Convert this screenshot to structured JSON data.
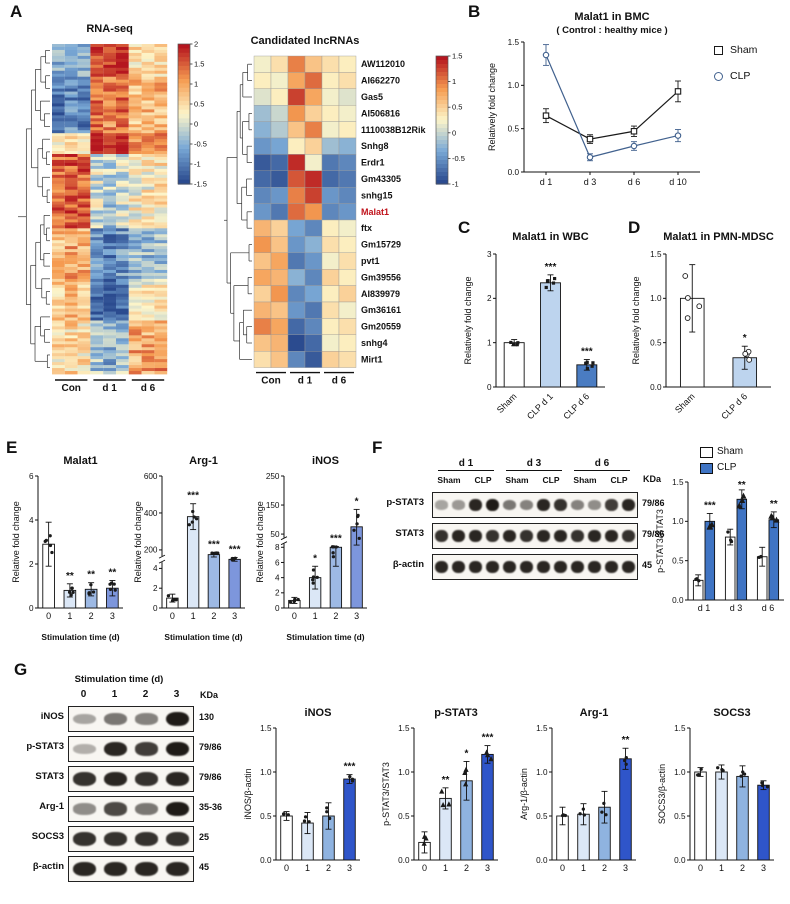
{
  "labels": {
    "A": "A",
    "B": "B",
    "C": "C",
    "D": "D",
    "E": "E",
    "F": "F",
    "G": "G"
  },
  "palette": {
    "time_bars_e": [
      "#ffffff",
      "#dbe7f6",
      "#9db9e4",
      "#7d96dc"
    ],
    "time_bars_g": [
      "#ffffff",
      "#dbe7f6",
      "#8fb3e0",
      "#2f55c9"
    ],
    "clp_fill": "#3f74c4"
  },
  "chart_data": [
    {
      "id": "A-rnaseq",
      "type": "heatmap",
      "title": "RNA-seq",
      "col_groups": [
        "Con",
        "d 1",
        "d 6"
      ],
      "range": [
        -1.5,
        2
      ],
      "colorbar_ticks": [
        2,
        1.5,
        1,
        0.5,
        0,
        -0.5,
        -1,
        -1.5
      ],
      "n_rows": 110,
      "n_cols": 9,
      "bands": [
        {
          "frac": 0.1,
          "means": [
            -0.5,
            1.7,
            0.6
          ],
          "noise": 0.45
        },
        {
          "frac": 0.17,
          "means": [
            -1.0,
            1.4,
            0.9
          ],
          "noise": 0.5
        },
        {
          "frac": 0.06,
          "means": [
            0.4,
            1.9,
            1.3
          ],
          "noise": 0.35
        },
        {
          "frac": 0.23,
          "means": [
            1.5,
            -0.1,
            0.4
          ],
          "noise": 0.55
        },
        {
          "frac": 0.15,
          "means": [
            0.9,
            -0.9,
            -0.3
          ],
          "noise": 0.5
        },
        {
          "frac": 0.13,
          "means": [
            0.7,
            -1.2,
            0.4
          ],
          "noise": 0.45
        },
        {
          "frac": 0.16,
          "means": [
            0.5,
            -0.4,
            1.1
          ],
          "noise": 0.55
        }
      ]
    },
    {
      "id": "A-lncrna",
      "type": "heatmap",
      "title": "Candidated lncRNAs",
      "col_groups": [
        "Con",
        "d 1",
        "d 6"
      ],
      "range": [
        -1,
        1.5
      ],
      "colorbar_ticks": [
        1.5,
        1,
        0.5,
        0,
        -0.5,
        -1
      ],
      "highlight": "Malat1",
      "genes": [
        "AW112010",
        "AI662270",
        "Gas5",
        "AI506816",
        "1110038B12Rik",
        "Snhg8",
        "Erdr1",
        "Gm43305",
        "snhg15",
        "Malat1",
        "ftx",
        "Gm15729",
        "pvt1",
        "Gm39556",
        "AI839979",
        "Gm36161",
        "Gm20559",
        "snhg4",
        "Mirt1"
      ],
      "values": [
        [
          0.2,
          0.4,
          1.0,
          0.6,
          0.4,
          0.3
        ],
        [
          0.3,
          0.2,
          0.8,
          1.1,
          0.3,
          0.4
        ],
        [
          0.1,
          0.3,
          1.3,
          0.8,
          0.2,
          0.1
        ],
        [
          -0.2,
          0.0,
          0.9,
          0.5,
          0.3,
          0.2
        ],
        [
          -0.3,
          -0.1,
          0.6,
          1.0,
          0.2,
          0.3
        ],
        [
          -0.5,
          -0.4,
          0.3,
          0.5,
          -0.2,
          -0.3
        ],
        [
          -0.9,
          -0.8,
          1.4,
          0.2,
          -0.7,
          -0.6
        ],
        [
          -0.8,
          -0.9,
          1.2,
          1.4,
          -0.8,
          -0.7
        ],
        [
          -0.6,
          -0.5,
          1.0,
          1.3,
          -0.5,
          -0.6
        ],
        [
          -0.5,
          -0.7,
          1.1,
          0.9,
          -0.6,
          -0.5
        ],
        [
          0.7,
          0.5,
          -0.4,
          -0.6,
          0.3,
          0.2
        ],
        [
          0.9,
          0.6,
          -0.5,
          -0.3,
          0.4,
          0.3
        ],
        [
          0.6,
          0.8,
          -0.7,
          -0.5,
          0.2,
          0.4
        ],
        [
          0.8,
          0.7,
          -0.3,
          -0.6,
          0.5,
          0.3
        ],
        [
          0.5,
          0.9,
          -0.6,
          -0.4,
          0.3,
          0.5
        ],
        [
          0.7,
          0.6,
          -0.5,
          -0.7,
          0.4,
          0.2
        ],
        [
          1.0,
          0.8,
          -0.8,
          -0.6,
          0.3,
          0.4
        ],
        [
          0.6,
          0.7,
          -1.0,
          -0.8,
          0.2,
          0.3
        ],
        [
          0.4,
          0.6,
          -0.6,
          -0.9,
          0.5,
          0.4
        ]
      ]
    },
    {
      "id": "B",
      "type": "line",
      "title": "Malat1 in BMC",
      "subtitle": "( Control : healthy mice )",
      "ylabel": "Relatively fold change",
      "categories": [
        "d 1",
        "d 3",
        "d 6",
        "d 10"
      ],
      "ylim": [
        0,
        1.5
      ],
      "yticks": [
        0,
        0.5,
        1,
        1.5
      ],
      "yticklabels": [
        "0.0",
        "0.5",
        "1.0",
        "1.5"
      ],
      "series": [
        {
          "name": "Sham",
          "marker": "square",
          "color": "#1a1a1a",
          "values": [
            0.65,
            0.38,
            0.47,
            0.93
          ],
          "errors": [
            0.08,
            0.05,
            0.06,
            0.12
          ]
        },
        {
          "name": "CLP",
          "marker": "circle",
          "color": "#41618e",
          "values": [
            1.35,
            0.17,
            0.3,
            0.42
          ],
          "errors": [
            0.12,
            0.04,
            0.05,
            0.07
          ]
        }
      ]
    },
    {
      "id": "C",
      "type": "bar",
      "title": "Malat1 in WBC",
      "ylabel": "Relatively fold change",
      "categories": [
        "Sham",
        "CLP d 1",
        "CLP d 6"
      ],
      "values": [
        1.0,
        2.35,
        0.5
      ],
      "errors": [
        0.07,
        0.18,
        0.12
      ],
      "sig": [
        "",
        "***",
        "***"
      ],
      "colors": [
        "#ffffff",
        "#bdd4ee",
        "#4a7cc2"
      ],
      "ylim": [
        0,
        3
      ],
      "yticks": [
        0,
        1,
        2,
        3
      ],
      "yticklabels": [
        "0",
        "1",
        "2",
        "3"
      ],
      "rotate_x": true,
      "marker": "square",
      "points": 5,
      "markersize": 3.2
    },
    {
      "id": "D",
      "type": "bar",
      "title": "Malat1 in PMN-MDSC",
      "ylabel": "Relatively fold change",
      "categories": [
        "Sham",
        "CLP d 6"
      ],
      "values": [
        1.0,
        0.33
      ],
      "errors": [
        0.38,
        0.13
      ],
      "sig": [
        "",
        "*"
      ],
      "colors": [
        "#ffffff",
        "#bdd4ee"
      ],
      "barw": 0.45,
      "ylim": [
        0,
        1.5
      ],
      "yticks": [
        0,
        0.5,
        1,
        1.5
      ],
      "yticklabels": [
        "0.0",
        "0.5",
        "1.0",
        "1.5"
      ],
      "rotate_x": true,
      "marker": "circle-open",
      "points": 4,
      "markersize": 2.4
    },
    {
      "id": "E1",
      "type": "bar",
      "title": "Malat1",
      "ylabel": "Relative fold change",
      "xlabel": "Stimulation time (d)",
      "categories": [
        "0",
        "1",
        "2",
        "3"
      ],
      "values": [
        2.9,
        0.8,
        0.85,
        0.9
      ],
      "errors": [
        1.0,
        0.3,
        0.3,
        0.35
      ],
      "sig": [
        "",
        "**",
        "**",
        "**"
      ],
      "colors": [
        "#ffffff",
        "#dbe7f6",
        "#9db9e4",
        "#7d96dc"
      ],
      "ylim": [
        0,
        6
      ],
      "yticks": [
        0,
        2,
        4,
        6
      ],
      "yticklabels": [
        "0",
        "2",
        "4",
        "6"
      ],
      "marker": "dot",
      "points": 5,
      "markersize": 3
    },
    {
      "id": "E2",
      "type": "bar",
      "title": "Arg-1",
      "ylabel": "Relative fold change",
      "xlabel": "Stimulation time (d)",
      "categories": [
        "0",
        "1",
        "2",
        "3"
      ],
      "values": [
        1,
        380,
        150,
        100
      ],
      "errors": [
        0.4,
        70,
        25,
        20
      ],
      "sig": [
        "",
        "***",
        "***",
        "***"
      ],
      "colors": [
        "#ffffff",
        "#dbe7f6",
        "#9db9e4",
        "#7d96dc"
      ],
      "yticks": [
        0,
        2,
        4,
        200,
        400,
        600
      ],
      "yticklabels": [
        "0",
        "2",
        "4",
        "200",
        "400",
        "600"
      ],
      "scale": [
        [
          0,
          0
        ],
        [
          4,
          0.3
        ],
        [
          200,
          0.44
        ],
        [
          600,
          1
        ]
      ],
      "breaks": [
        0.37
      ],
      "marker": "dot",
      "points": 5,
      "markersize": 3
    },
    {
      "id": "E3",
      "type": "bar",
      "title": "iNOS",
      "ylabel": "Relative fold change",
      "xlabel": "Stimulation time (d)",
      "categories": [
        "0",
        "1",
        "2",
        "3"
      ],
      "values": [
        1,
        4,
        8,
        75
      ],
      "errors": [
        0.4,
        1.5,
        2.5,
        60
      ],
      "sig": [
        "",
        "*",
        "***",
        "*"
      ],
      "colors": [
        "#ffffff",
        "#dbe7f6",
        "#9db9e4",
        "#7d96dc"
      ],
      "yticks": [
        0,
        2,
        4,
        6,
        8,
        50,
        150,
        250
      ],
      "yticklabels": [
        "0",
        "2",
        "4",
        "6",
        "8",
        "50",
        "150",
        "250"
      ],
      "scale": [
        [
          0,
          0
        ],
        [
          8,
          0.46
        ],
        [
          50,
          0.56
        ],
        [
          250,
          1
        ]
      ],
      "breaks": [
        0.51
      ],
      "marker": "dot",
      "points": 5,
      "markersize": 3
    },
    {
      "id": "F",
      "type": "groupbar",
      "ylabel": "p-STAT3/STAT3",
      "categories": [
        "d 1",
        "d 3",
        "d 6"
      ],
      "ylim": [
        0,
        1.5
      ],
      "yticks": [
        0,
        0.5,
        1,
        1.5
      ],
      "yticklabels": [
        "0.0",
        "0.5",
        "1.0",
        "1.5"
      ],
      "sig": [
        "***",
        "**",
        "**"
      ],
      "points": 3,
      "markersize": 3,
      "series": [
        {
          "name": "Sham",
          "color": "#ffffff",
          "marker": "dot",
          "values": [
            0.25,
            0.8,
            0.55
          ],
          "errors": [
            0.07,
            0.1,
            0.12
          ]
        },
        {
          "name": "CLP",
          "color": "#3f74c4",
          "marker": "triangle",
          "values": [
            1.0,
            1.28,
            1.02
          ],
          "errors": [
            0.1,
            0.12,
            0.1
          ]
        }
      ]
    },
    {
      "id": "G1",
      "type": "bar",
      "title": "iNOS",
      "ylabel": "iNOS/β-actin",
      "categories": [
        "0",
        "1",
        "2",
        "3"
      ],
      "values": [
        0.5,
        0.42,
        0.5,
        0.92
      ],
      "errors": [
        0.05,
        0.12,
        0.15,
        0.05
      ],
      "sig": [
        "",
        "",
        "",
        "***"
      ],
      "colors": [
        "#ffffff",
        "#dbe7f6",
        "#8fb3e0",
        "#2f55c9"
      ],
      "ylim": [
        0,
        1.5
      ],
      "yticks": [
        0,
        0.5,
        1,
        1.5
      ],
      "yticklabels": [
        "0.0",
        "0.5",
        "1.0",
        "1.5"
      ],
      "marker": "dot",
      "points": 3,
      "markersize": 3
    },
    {
      "id": "G2",
      "type": "bar",
      "title": "p-STAT3",
      "ylabel": "p-STAT3/STAT3",
      "categories": [
        "0",
        "1",
        "2",
        "3"
      ],
      "values": [
        0.2,
        0.7,
        0.9,
        1.2
      ],
      "errors": [
        0.12,
        0.12,
        0.22,
        0.1
      ],
      "sig": [
        "",
        "**",
        "*",
        "***"
      ],
      "colors": [
        "#ffffff",
        "#dbe7f6",
        "#8fb3e0",
        "#2f55c9"
      ],
      "ylim": [
        0,
        1.5
      ],
      "yticks": [
        0,
        0.5,
        1,
        1.5
      ],
      "yticklabels": [
        "0.0",
        "0.5",
        "1.0",
        "1.5"
      ],
      "marker": "triangle",
      "points": 3,
      "markersize": 2.6
    },
    {
      "id": "G3",
      "type": "bar",
      "title": "Arg-1",
      "ylabel": "Arg-1/β-actin",
      "categories": [
        "0",
        "1",
        "2",
        "3"
      ],
      "values": [
        0.5,
        0.52,
        0.6,
        1.15
      ],
      "errors": [
        0.1,
        0.12,
        0.18,
        0.12
      ],
      "sig": [
        "",
        "",
        "",
        "**"
      ],
      "colors": [
        "#ffffff",
        "#dbe7f6",
        "#8fb3e0",
        "#2f55c9"
      ],
      "ylim": [
        0,
        1.5
      ],
      "yticks": [
        0,
        0.5,
        1,
        1.5
      ],
      "yticklabels": [
        "0.0",
        "0.5",
        "1.0",
        "1.5"
      ],
      "marker": "dot",
      "points": 3,
      "markersize": 3
    },
    {
      "id": "G4",
      "type": "bar",
      "title": "SOCS3",
      "ylabel": "SOCS3/β-actin",
      "categories": [
        "0",
        "1",
        "2",
        "3"
      ],
      "values": [
        1.0,
        1.0,
        0.95,
        0.85
      ],
      "errors": [
        0.05,
        0.08,
        0.12,
        0.05
      ],
      "sig": [
        "",
        "",
        "",
        ""
      ],
      "colors": [
        "#ffffff",
        "#dbe7f6",
        "#8fb3e0",
        "#2f55c9"
      ],
      "ylim": [
        0,
        1.5
      ],
      "yticks": [
        0,
        0.5,
        1,
        1.5
      ],
      "yticklabels": [
        "0.0",
        "0.5",
        "1.0",
        "1.5"
      ],
      "marker": "dot",
      "points": 3,
      "markersize": 3
    }
  ],
  "blotF": {
    "header_groups": [
      "d 1",
      "d 3",
      "d 6"
    ],
    "sub_labels": [
      "Sham",
      "CLP",
      "Sham",
      "CLP",
      "Sham",
      "CLP"
    ],
    "kda_label": "KDa",
    "rows": [
      {
        "label": "p-STAT3",
        "kda": "79/86",
        "bands": [
          0.35,
          0.4,
          0.9,
          0.95,
          0.55,
          0.5,
          0.9,
          0.85,
          0.5,
          0.45,
          0.8,
          0.9
        ]
      },
      {
        "label": "STAT3",
        "kda": "79/86",
        "bands": [
          0.85,
          0.9,
          0.9,
          0.85,
          0.9,
          0.85,
          0.9,
          0.9,
          0.85,
          0.9,
          0.9,
          0.85
        ]
      },
      {
        "label": "β-actin",
        "kda": "45",
        "bands": [
          0.9,
          0.9,
          0.9,
          0.9,
          0.9,
          0.9,
          0.9,
          0.9,
          0.9,
          0.9,
          0.9,
          0.9
        ]
      }
    ]
  },
  "blotG": {
    "header": "Stimulation time (d)",
    "lanes": [
      "0",
      "1",
      "2",
      "3"
    ],
    "kda_label": "KDa",
    "rows": [
      {
        "label": "iNOS",
        "kda": "130",
        "bands": [
          0.35,
          0.55,
          0.5,
          0.95
        ]
      },
      {
        "label": "p-STAT3",
        "kda": "79/86",
        "bands": [
          0.3,
          0.9,
          0.8,
          0.95
        ]
      },
      {
        "label": "STAT3",
        "kda": "79/86",
        "bands": [
          0.85,
          0.9,
          0.85,
          0.9
        ]
      },
      {
        "label": "Arg-1",
        "kda": "35-36",
        "bands": [
          0.45,
          0.75,
          0.55,
          0.95
        ]
      },
      {
        "label": "SOCS3",
        "kda": "25",
        "bands": [
          0.85,
          0.85,
          0.85,
          0.85
        ]
      },
      {
        "label": "β-actin",
        "kda": "45",
        "bands": [
          0.9,
          0.9,
          0.9,
          0.9
        ]
      }
    ]
  }
}
